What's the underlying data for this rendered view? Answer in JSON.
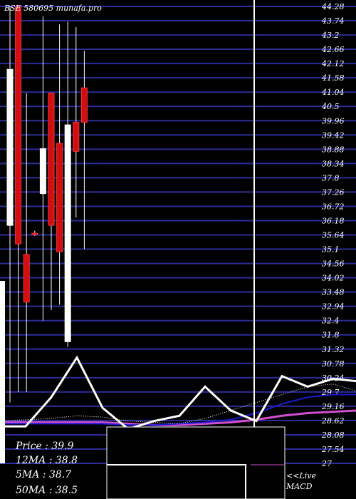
{
  "chart_data": {
    "type": "candlestick",
    "title": "BSE 580695 munafa.pro",
    "y_ticks": [
      "44.28",
      "43.74",
      "43.2",
      "42.66",
      "42.12",
      "41.58",
      "41.04",
      "40.5",
      "39.96",
      "39.42",
      "38.88",
      "38.34",
      "37.8",
      "37.26",
      "36.72",
      "36.18",
      "35.64",
      "35.1",
      "34.56",
      "34.02",
      "33.48",
      "32.94",
      "32.4",
      "31.8",
      "31.32",
      "30.78",
      "30.24",
      "29.7",
      "29.16",
      "28.62",
      "28.08",
      "27.54",
      "27"
    ],
    "ylim": [
      27,
      44.28
    ],
    "grid": true,
    "candles": [
      {
        "open": 36.0,
        "high": 44.28,
        "low": 29.3,
        "close": 41.9,
        "color": "#ffffff"
      },
      {
        "open": 44.28,
        "high": 44.28,
        "low": 29.7,
        "close": 35.3,
        "color": "#d01010"
      },
      {
        "open": 34.9,
        "high": 41.0,
        "low": 29.7,
        "close": 33.1,
        "color": "#d01010"
      },
      {
        "open": 35.7,
        "high": 35.8,
        "low": 35.6,
        "close": 35.7,
        "color": "#d01010"
      },
      {
        "open": 37.2,
        "high": 43.9,
        "low": 32.4,
        "close": 38.9,
        "color": "#ffffff"
      },
      {
        "open": 41.0,
        "high": 41.0,
        "low": 32.8,
        "close": 36.0,
        "color": "#d01010"
      },
      {
        "open": 39.1,
        "high": 43.6,
        "low": 33.0,
        "close": 35.0,
        "color": "#d01010"
      },
      {
        "open": 31.6,
        "high": 43.7,
        "low": 31.4,
        "close": 39.8,
        "color": "#ffffff"
      },
      {
        "open": 39.9,
        "high": 43.5,
        "low": 36.3,
        "close": 38.8,
        "color": "#d01010"
      },
      {
        "open": 41.2,
        "high": 42.6,
        "low": 35.1,
        "close": 39.9,
        "color": "#d01010"
      }
    ],
    "partial_candle": {
      "open": 30.2,
      "high": 33.9,
      "low": 27.0,
      "close": 33.9,
      "color": "#ffffff"
    },
    "indicator_lines": {
      "white_line": [
        28.4,
        28.4,
        29.5,
        31.0,
        29.1,
        28.3,
        28.6,
        28.8,
        29.9,
        29.0,
        28.6,
        30.3,
        29.9,
        30.2,
        30.1
      ],
      "dotted_line": [
        28.6,
        28.65,
        28.7,
        28.8,
        28.75,
        28.6,
        28.55,
        28.5,
        28.7,
        29.0,
        29.3,
        29.6,
        29.9,
        30.0,
        29.7
      ],
      "blue_line": [
        28.5,
        28.5,
        28.5,
        28.5,
        28.5,
        28.45,
        28.45,
        28.5,
        28.55,
        28.65,
        28.9,
        29.25,
        29.5,
        29.6,
        29.6
      ],
      "pink_line": [
        28.55,
        28.55,
        28.55,
        28.55,
        28.55,
        28.5,
        28.45,
        28.45,
        28.5,
        28.55,
        28.65,
        28.8,
        28.9,
        28.95,
        29.0
      ]
    },
    "legend": {
      "price": "Price   : 39.9",
      "ma12": "12MA : 38.8",
      "ma5": "5MA : 38.7",
      "ma50": "50MA : 38.5"
    },
    "macd_label": "<<Live\nMACD",
    "macd_line_1": "<<Live",
    "macd_line_2": "MACD"
  },
  "colors": {
    "background": "#000000",
    "grid": "#2c2c9a",
    "up": "#ffffff",
    "down": "#d01010",
    "blue_line": "#1a1ad0",
    "pink_line": "#d04fd0",
    "text": "#ffffff"
  }
}
